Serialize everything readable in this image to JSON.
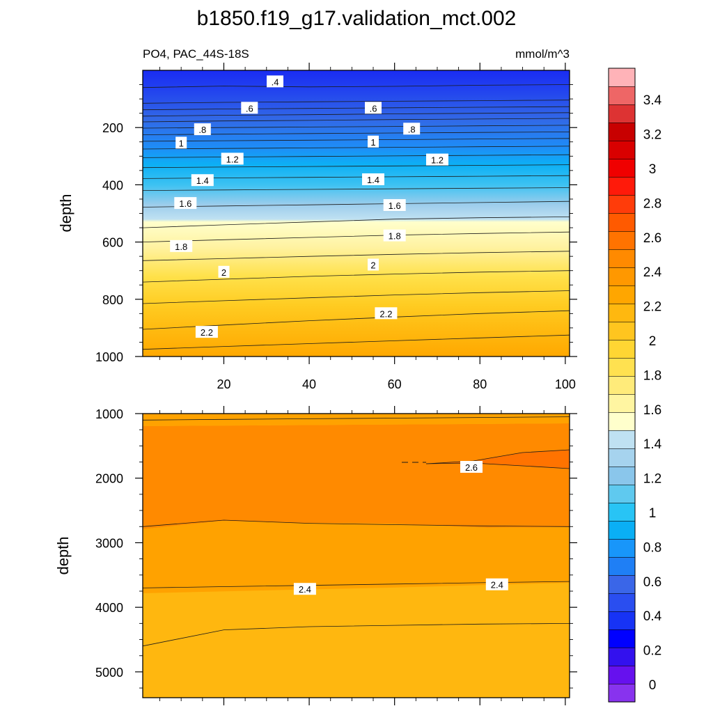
{
  "chart_data": [
    {
      "type": "contour",
      "title": "b1850.f19_g17.validation_mct.002",
      "subtitle_left": "PO4, PAC_44S-18S",
      "subtitle_right": "mmol/m^3",
      "ylabel": "depth",
      "xlabel": "",
      "xlim": [
        1,
        101
      ],
      "ylim": [
        1000,
        0
      ],
      "x_ticks": [
        "20",
        "40",
        "60",
        "80",
        "100"
      ],
      "x_tick_values": [
        20,
        40,
        60,
        80,
        100
      ],
      "y_ticks": [
        "200",
        "400",
        "600",
        "800",
        "1000"
      ],
      "y_tick_values": [
        200,
        400,
        600,
        800,
        1000
      ],
      "grid": false,
      "contour_lines": [
        {
          "level": 0.3,
          "depths": [
            60,
            55,
            58,
            56,
            52,
            50
          ]
        },
        {
          "level": 0.4,
          "depths": [
            115,
            112,
            110,
            108,
            106,
            104
          ]
        },
        {
          "level": 0.5,
          "depths": [
            138,
            135,
            133,
            131,
            129,
            127
          ]
        },
        {
          "level": 0.6,
          "depths": [
            160,
            157,
            155,
            152,
            150,
            148
          ]
        },
        {
          "level": 0.7,
          "depths": [
            180,
            177,
            175,
            172,
            170,
            168
          ]
        },
        {
          "level": 0.8,
          "depths": [
            202,
            200,
            198,
            196,
            194,
            192
          ]
        },
        {
          "level": 0.9,
          "depths": [
            225,
            223,
            221,
            219,
            217,
            215
          ]
        },
        {
          "level": 1.0,
          "depths": [
            248,
            246,
            244,
            242,
            240,
            238
          ]
        },
        {
          "level": 1.1,
          "depths": [
            275,
            273,
            271,
            269,
            267,
            265
          ]
        },
        {
          "level": 1.2,
          "depths": [
            305,
            303,
            301,
            299,
            297,
            295
          ]
        },
        {
          "level": 1.3,
          "depths": [
            340,
            338,
            336,
            334,
            332,
            330
          ]
        },
        {
          "level": 1.4,
          "depths": [
            378,
            376,
            374,
            372,
            370,
            368
          ]
        },
        {
          "level": 1.5,
          "depths": [
            420,
            418,
            416,
            414,
            412,
            410
          ]
        },
        {
          "level": 1.6,
          "depths": [
            478,
            474,
            470,
            466,
            462,
            458
          ]
        },
        {
          "level": 1.7,
          "depths": [
            550,
            540,
            530,
            520,
            515,
            512
          ]
        },
        {
          "level": 1.8,
          "depths": [
            600,
            592,
            584,
            576,
            570,
            565
          ]
        },
        {
          "level": 1.9,
          "depths": [
            665,
            658,
            650,
            643,
            637,
            632
          ]
        },
        {
          "level": 2.0,
          "depths": [
            740,
            730,
            720,
            712,
            705,
            700
          ]
        },
        {
          "level": 2.1,
          "depths": [
            815,
            805,
            795,
            785,
            777,
            770
          ]
        },
        {
          "level": 2.2,
          "depths": [
            905,
            890,
            875,
            862,
            850,
            840
          ]
        },
        {
          "level": 2.3,
          "depths": [
            975,
            965,
            955,
            945,
            935,
            925
          ]
        }
      ],
      "contour_x": [
        1,
        20,
        40,
        60,
        80,
        101
      ],
      "contour_labels": [
        {
          "text": ".4",
          "x": 32,
          "y": 40
        },
        {
          "text": ".6",
          "x": 26,
          "y": 132
        },
        {
          "text": ".6",
          "x": 55,
          "y": 132
        },
        {
          "text": ".8",
          "x": 15,
          "y": 207
        },
        {
          "text": ".8",
          "x": 64,
          "y": 205
        },
        {
          "text": "1",
          "x": 10,
          "y": 254
        },
        {
          "text": "1",
          "x": 55,
          "y": 250
        },
        {
          "text": "1.2",
          "x": 22,
          "y": 310
        },
        {
          "text": "1.2",
          "x": 70,
          "y": 313
        },
        {
          "text": "1.4",
          "x": 15,
          "y": 385
        },
        {
          "text": "1.4",
          "x": 55,
          "y": 382
        },
        {
          "text": "1.6",
          "x": 11,
          "y": 465
        },
        {
          "text": "1.6",
          "x": 60,
          "y": 472
        },
        {
          "text": "1.8",
          "x": 10,
          "y": 615
        },
        {
          "text": "1.8",
          "x": 60,
          "y": 578
        },
        {
          "text": "2",
          "x": 20,
          "y": 705
        },
        {
          "text": "2",
          "x": 55,
          "y": 680
        },
        {
          "text": "2.2",
          "x": 16,
          "y": 915
        },
        {
          "text": "2.2",
          "x": 58,
          "y": 850
        }
      ]
    },
    {
      "type": "contour",
      "ylabel": "depth",
      "xlabel": "",
      "xlim": [
        1,
        101
      ],
      "ylim": [
        5400,
        1000
      ],
      "y_ticks": [
        "1000",
        "2000",
        "3000",
        "4000",
        "5000"
      ],
      "y_tick_values": [
        1000,
        2000,
        3000,
        4000,
        5000
      ],
      "grid": false,
      "contour_lines": [
        {
          "level": 2.5,
          "depths": [
            1100,
            1090,
            1080,
            1070,
            1060,
            1050
          ]
        },
        {
          "level": 2.5,
          "depths": [
            2750,
            2650,
            2700,
            2720,
            2740,
            2750
          ]
        },
        {
          "level": 2.4,
          "depths": [
            3700,
            3680,
            3660,
            3640,
            3620,
            3600
          ]
        },
        {
          "level": 2.3,
          "depths": [
            4600,
            4350,
            4300,
            4280,
            4260,
            4250
          ]
        }
      ],
      "contour_x": [
        1,
        20,
        40,
        60,
        80,
        101
      ],
      "contour_labels": [
        {
          "text": "2.6",
          "x": 78,
          "y": 1830
        },
        {
          "text": "2.4",
          "x": 39,
          "y": 3720
        },
        {
          "text": "2.4",
          "x": 84,
          "y": 3650
        }
      ]
    }
  ],
  "colorbar": {
    "labels": [
      "0",
      "0.2",
      "0.4",
      "0.6",
      "0.8",
      "1",
      "1.2",
      "1.4",
      "1.6",
      "1.8",
      "2",
      "2.2",
      "2.4",
      "2.6",
      "2.8",
      "3",
      "3.2",
      "3.4"
    ],
    "colors": [
      "#8833ee",
      "#6611ee",
      "#3311ee",
      "#0000ff",
      "#1733f5",
      "#2a4ef0",
      "#3a66e8",
      "#1f7ff5",
      "#1896fa",
      "#0aaff5",
      "#28c4f5",
      "#5fc9ef",
      "#8ac6eb",
      "#a6d3ee",
      "#bfe1f2",
      "#ffffcc",
      "#fff5a1",
      "#ffeb7a",
      "#ffe150",
      "#ffd633",
      "#ffc51f",
      "#ffb80f",
      "#ffa600",
      "#ff9800",
      "#ff8a00",
      "#ff7300",
      "#ff5a00",
      "#ff3c0a",
      "#ff1a0a",
      "#f00000",
      "#d90000",
      "#c80000",
      "#dd3333",
      "#ee6666",
      "#ffb3b8"
    ]
  }
}
